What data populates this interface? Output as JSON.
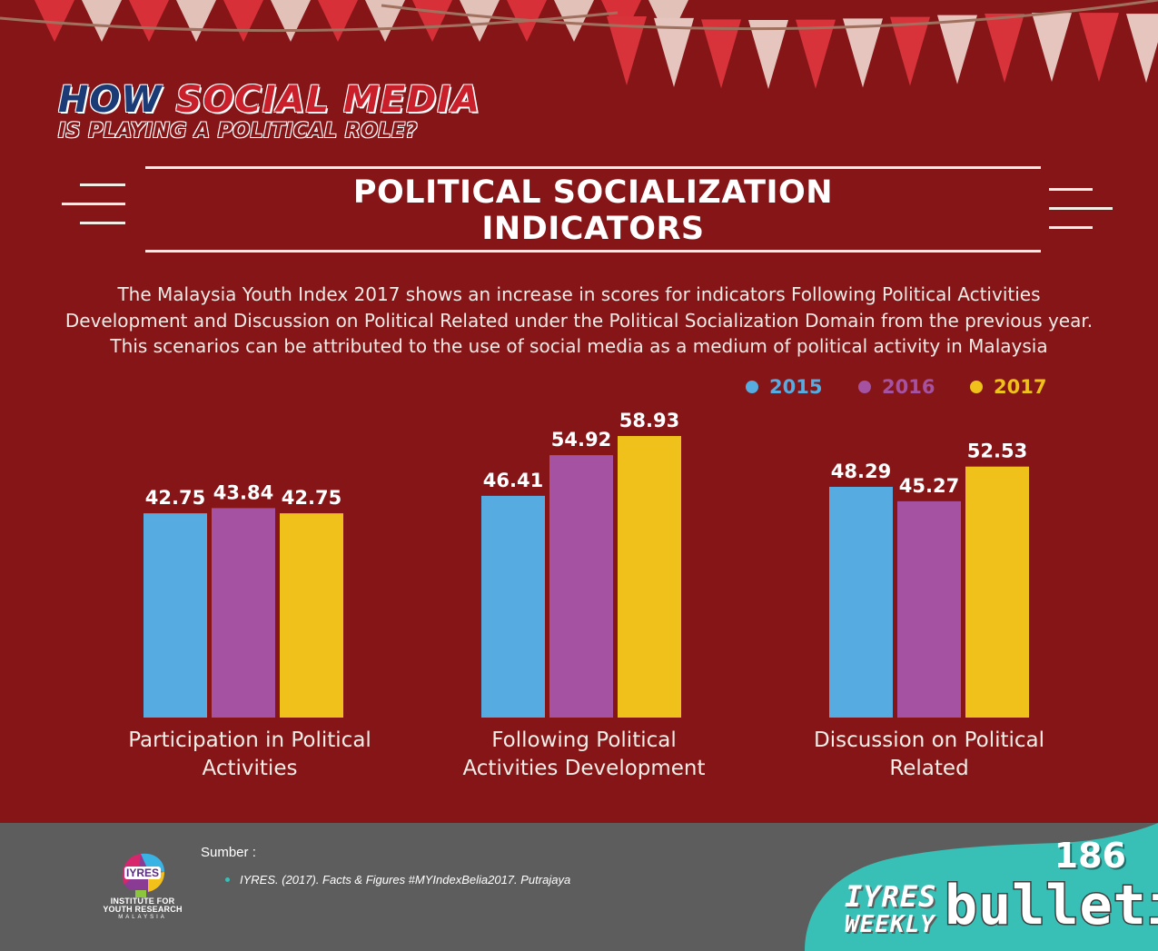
{
  "header": {
    "title_part1": "HOW",
    "title_part2": "SOCIAL MEDIA",
    "subtitle": "IS PLAYING A POLITICAL ROLE?"
  },
  "section": {
    "title_line1": "POLITICAL SOCIALIZATION",
    "title_line2": "INDICATORS"
  },
  "description": {
    "line1": "The Malaysia Youth Index 2017 shows an increase in scores for indicators Following Political Activities",
    "line2": "Development and Discussion on Political Related under the Political Socialization Domain from the previous year.",
    "line3": "This scenarios can be attributed to the use of social media as a medium of political activity in Malaysia"
  },
  "colors": {
    "background": "#861518",
    "s2015": "#56ace0",
    "s2016": "#a652a2",
    "s2017": "#efc11a",
    "footer": "#5d5d5d",
    "teal": "#38bfb6"
  },
  "chart_data": {
    "type": "bar",
    "title": "POLITICAL SOCIALIZATION INDICATORS",
    "categories": [
      "Participation in Political Activities",
      "Following Political Activities Development",
      "Discussion on Political Related"
    ],
    "category_label_lines": [
      [
        "Participation in Political",
        "Activities"
      ],
      [
        "Following Political",
        "Activities Development"
      ],
      [
        "Discussion on Political",
        "Related"
      ]
    ],
    "series": [
      {
        "name": "2015",
        "color": "#56ace0",
        "values": [
          42.75,
          46.41,
          48.29
        ]
      },
      {
        "name": "2016",
        "color": "#a652a2",
        "values": [
          43.84,
          54.92,
          45.27
        ]
      },
      {
        "name": "2017",
        "color": "#efc11a",
        "values": [
          42.75,
          58.93,
          52.53
        ]
      }
    ],
    "value_labels": [
      [
        "42.75",
        "46.41",
        "48.29"
      ],
      [
        "43.84",
        "54.92",
        "45.27"
      ],
      [
        "42.75",
        "58.93",
        "52.53"
      ]
    ],
    "xlabel": "",
    "ylabel": "",
    "grid": false,
    "legend": "top-right"
  },
  "footer": {
    "sumber_label": "Sumber :",
    "reference": "IYRES. (2017). Facts & Figures #MYIndexBelia2017. Putrajaya",
    "logo_name": "IYRES",
    "logo_line1": "INSTITUTE FOR",
    "logo_line2": "YOUTH RESEARCH",
    "logo_line3": "MALAYSIA",
    "issue_number": "186",
    "brand_iyres": "IYRES",
    "brand_weekly": "WEEKLY",
    "brand_bulletin": "bulletin"
  }
}
